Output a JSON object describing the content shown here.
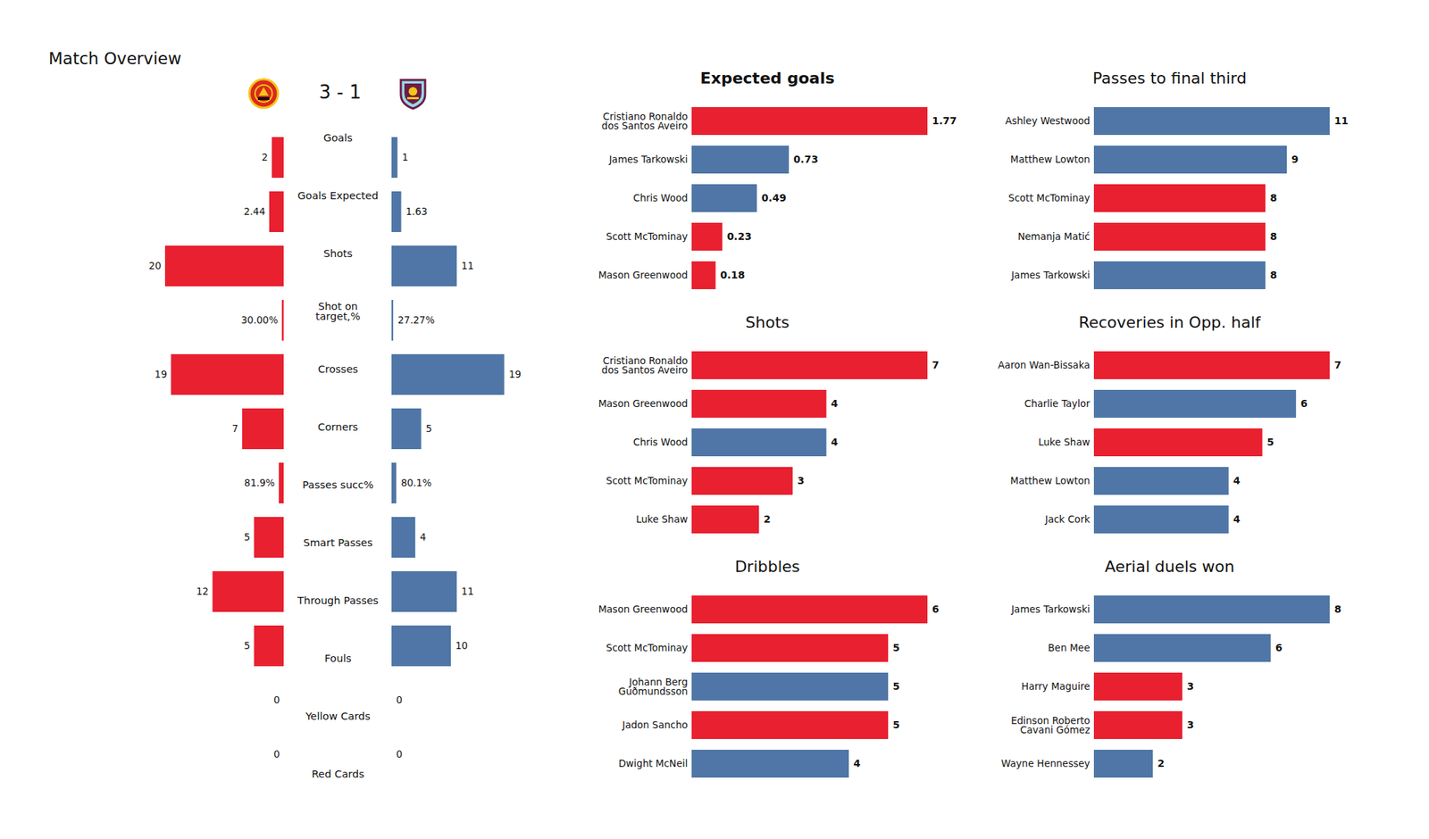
{
  "chart_data": [
    {
      "type": "bar",
      "orientation": "horizontal",
      "title": "Match Overview",
      "subtitle": "3 - 1",
      "categories": [
        "Goals",
        "Goals Expected",
        "Shots",
        "Shot on\ntarget,%",
        "Crosses",
        "Corners",
        "Passes succ%",
        "Smart Passes",
        "Through Passes",
        "Fouls",
        "Yellow Cards",
        "Red Cards"
      ],
      "series": [
        {
          "color": "#e8202f",
          "values": [
            2,
            2.44,
            20,
            0.3,
            19,
            7,
            0.819,
            5,
            12,
            5,
            0,
            0
          ],
          "value_labels": [
            "2",
            "2.44",
            "20",
            "30.00%",
            "19",
            "7",
            "81.9%",
            "5",
            "12",
            "5",
            "0",
            "0"
          ]
        },
        {
          "color": "#4f76a6",
          "values": [
            1,
            1.63,
            11,
            0.2727,
            19,
            5,
            0.801,
            4,
            11,
            10,
            0,
            0
          ],
          "value_labels": [
            "1",
            "1.63",
            "11",
            "27.27%",
            "19",
            "5",
            "80.1%",
            "4",
            "11",
            "10",
            "0",
            "0"
          ]
        }
      ],
      "data_labels": true,
      "tick_labels": "y"
    },
    {
      "type": "bar",
      "orientation": "horizontal",
      "title": "Expected goals",
      "categories": [
        "Cristiano Ronaldo\ndos Santos Aveiro",
        "James Tarkowski",
        "Chris Wood",
        "Scott McTominay",
        "Mason Greenwood"
      ],
      "values": [
        1.77,
        0.73,
        0.49,
        0.23,
        0.18
      ],
      "colors": [
        "#e8202f",
        "#4f76a6",
        "#4f76a6",
        "#e8202f",
        "#e8202f"
      ],
      "data_labels": true,
      "tick_labels": "y"
    },
    {
      "type": "bar",
      "orientation": "horizontal",
      "title": "Shots",
      "categories": [
        "Cristiano Ronaldo\ndos Santos Aveiro",
        "Mason Greenwood",
        "Chris Wood",
        "Scott McTominay",
        "Luke Shaw"
      ],
      "values": [
        7,
        4,
        4,
        3,
        2
      ],
      "colors": [
        "#e8202f",
        "#e8202f",
        "#4f76a6",
        "#e8202f",
        "#e8202f"
      ],
      "data_labels": true,
      "tick_labels": "y"
    },
    {
      "type": "bar",
      "orientation": "horizontal",
      "title": "Dribbles",
      "categories": [
        "Mason Greenwood",
        "Scott McTominay",
        "Johann Berg\nGuðmundsson",
        "Jadon Sancho",
        "Dwight McNeil"
      ],
      "values": [
        6,
        5,
        5,
        5,
        4
      ],
      "colors": [
        "#e8202f",
        "#e8202f",
        "#4f76a6",
        "#e8202f",
        "#4f76a6"
      ],
      "data_labels": true,
      "tick_labels": "y"
    },
    {
      "type": "bar",
      "orientation": "horizontal",
      "title": "Passes to final third",
      "categories": [
        "Ashley Westwood",
        "Matthew Lowton",
        "Scott McTominay",
        "Nemanja Matić",
        "James Tarkowski"
      ],
      "values": [
        11,
        9,
        8,
        8,
        8
      ],
      "colors": [
        "#4f76a6",
        "#4f76a6",
        "#e8202f",
        "#e8202f",
        "#4f76a6"
      ],
      "data_labels": true,
      "tick_labels": "y"
    },
    {
      "type": "bar",
      "orientation": "horizontal",
      "title": "Recoveries in Opp. half",
      "categories": [
        "Aaron Wan-Bissaka",
        "Charlie Taylor",
        "Luke Shaw",
        "Matthew Lowton",
        "Jack Cork"
      ],
      "values": [
        7,
        6,
        5,
        4,
        4
      ],
      "colors": [
        "#e8202f",
        "#4f76a6",
        "#e8202f",
        "#4f76a6",
        "#4f76a6"
      ],
      "data_labels": true,
      "tick_labels": "y"
    },
    {
      "type": "bar",
      "orientation": "horizontal",
      "title": "Aerial duels won",
      "categories": [
        "James Tarkowski",
        "Ben Mee",
        "Harry Maguire",
        "Edinson Roberto\nCavani Gómez",
        "Wayne Hennessey"
      ],
      "values": [
        8,
        6,
        3,
        3,
        2
      ],
      "colors": [
        "#4f76a6",
        "#4f76a6",
        "#e8202f",
        "#e8202f",
        "#4f76a6"
      ],
      "data_labels": true,
      "tick_labels": "y"
    }
  ]
}
